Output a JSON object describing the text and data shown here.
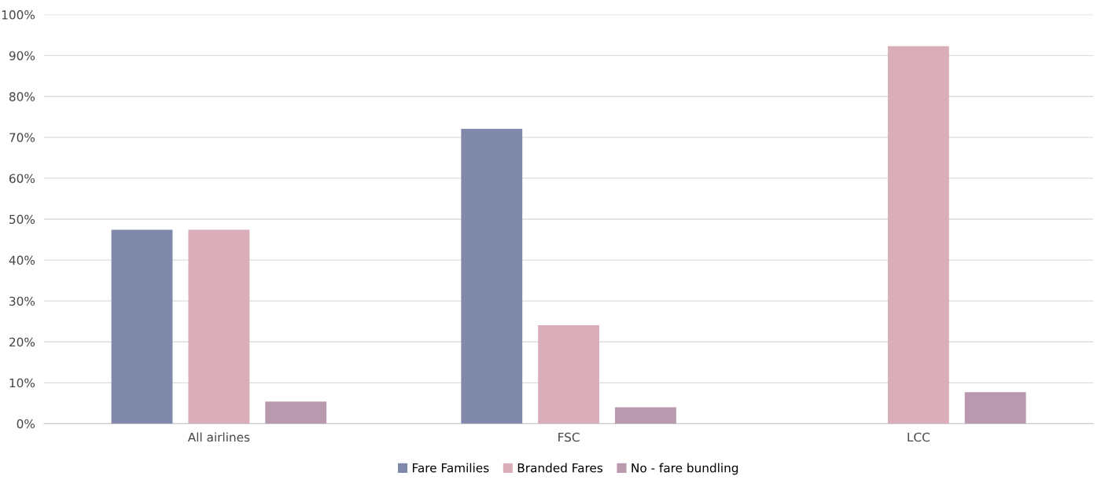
{
  "chart_data": {
    "type": "bar",
    "categories": [
      "All airlines",
      "FSC",
      "LCC"
    ],
    "series": [
      {
        "name": "Fare Families",
        "color": "#8089aa",
        "values": [
          47.4,
          72.1,
          0
        ]
      },
      {
        "name": "Branded Fares",
        "color": "#d9aeb9",
        "values": [
          47.4,
          24.1,
          92.3
        ]
      },
      {
        "name": "No - fare bundling",
        "color": "#b899ae",
        "values": [
          5.4,
          4.0,
          7.7
        ]
      }
    ],
    "ylim": [
      0,
      100
    ],
    "yticks": [
      {
        "value": 0,
        "label": "0%"
      },
      {
        "value": 10,
        "label": "10%"
      },
      {
        "value": 20,
        "label": "20%"
      },
      {
        "value": 30,
        "label": "30%"
      },
      {
        "value": 40,
        "label": "40%"
      },
      {
        "value": 50,
        "label": "50%"
      },
      {
        "value": 60,
        "label": "60%"
      },
      {
        "value": 70,
        "label": "70%"
      },
      {
        "value": 80,
        "label": "80%"
      },
      {
        "value": 90,
        "label": "90%"
      },
      {
        "value": 100,
        "label": "100%"
      }
    ],
    "grid": "y",
    "legend": "bottom"
  }
}
